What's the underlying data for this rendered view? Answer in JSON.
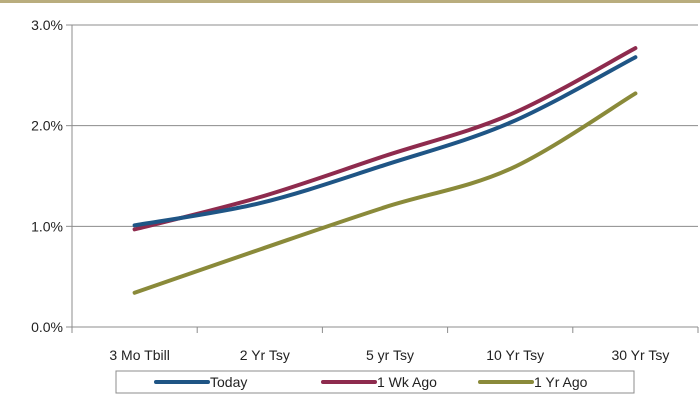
{
  "chart_data": {
    "type": "line",
    "categories": [
      "3 Mo Tbill",
      "2 Yr Tsy",
      "5 yr Tsy",
      "10 Yr Tsy",
      "30 Yr Tsy"
    ],
    "series": [
      {
        "name": "Today",
        "color": "#1f5585",
        "values": [
          1.01,
          1.23,
          1.61,
          2.03,
          2.68
        ]
      },
      {
        "name": "1 Wk Ago",
        "color": "#8e2b4e",
        "values": [
          0.97,
          1.29,
          1.7,
          2.11,
          2.77
        ]
      },
      {
        "name": "1 Yr Ago",
        "color": "#8a8a3a",
        "values": [
          0.34,
          0.77,
          1.19,
          1.57,
          2.32
        ]
      }
    ],
    "yticks": [
      "0.0%",
      "1.0%",
      "2.0%",
      "3.0%"
    ],
    "ylim": [
      0,
      3
    ],
    "grid": true,
    "legend_position": "bottom"
  }
}
